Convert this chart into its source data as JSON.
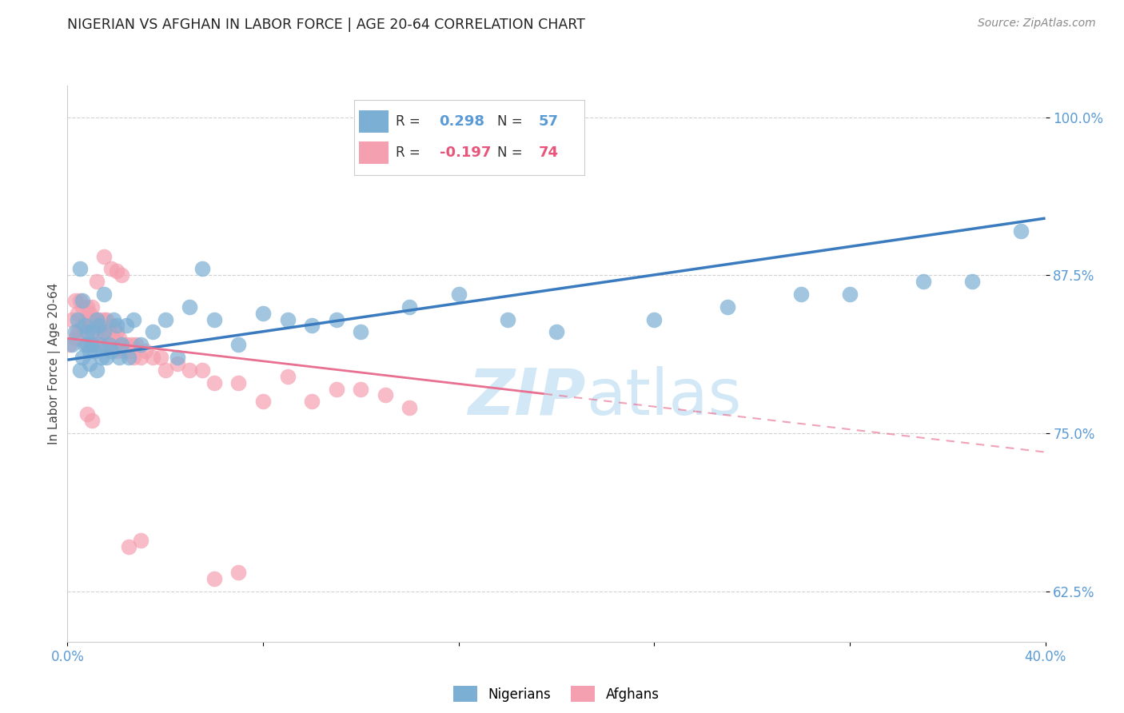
{
  "title": "NIGERIAN VS AFGHAN IN LABOR FORCE | AGE 20-64 CORRELATION CHART",
  "source": "Source: ZipAtlas.com",
  "ylabel": "In Labor Force | Age 20-64",
  "ytick_values": [
    0.625,
    0.75,
    0.875,
    1.0
  ],
  "ytick_labels": [
    "62.5%",
    "75.0%",
    "87.5%",
    "100.0%"
  ],
  "xlim": [
    0.0,
    0.4
  ],
  "ylim": [
    0.585,
    1.025
  ],
  "color_nigerian": "#7bafd4",
  "color_afghan": "#f4a0b0",
  "color_nigerian_line": "#3a7abf",
  "color_afghan_line": "#e87090",
  "watermark_zip": "ZIP",
  "watermark_atlas": "atlas",
  "nigerian_x": [
    0.002,
    0.003,
    0.004,
    0.005,
    0.005,
    0.006,
    0.006,
    0.007,
    0.007,
    0.008,
    0.008,
    0.009,
    0.009,
    0.01,
    0.01,
    0.011,
    0.012,
    0.012,
    0.013,
    0.013,
    0.014,
    0.015,
    0.015,
    0.016,
    0.017,
    0.018,
    0.019,
    0.02,
    0.021,
    0.022,
    0.024,
    0.025,
    0.027,
    0.03,
    0.035,
    0.04,
    0.045,
    0.05,
    0.055,
    0.06,
    0.07,
    0.08,
    0.09,
    0.1,
    0.11,
    0.12,
    0.14,
    0.16,
    0.18,
    0.2,
    0.24,
    0.27,
    0.3,
    0.32,
    0.35,
    0.37,
    0.39
  ],
  "nigerian_y": [
    0.82,
    0.83,
    0.84,
    0.88,
    0.8,
    0.855,
    0.81,
    0.82,
    0.835,
    0.83,
    0.82,
    0.815,
    0.805,
    0.82,
    0.83,
    0.815,
    0.84,
    0.8,
    0.82,
    0.835,
    0.81,
    0.86,
    0.83,
    0.81,
    0.82,
    0.815,
    0.84,
    0.835,
    0.81,
    0.82,
    0.835,
    0.81,
    0.84,
    0.82,
    0.83,
    0.84,
    0.81,
    0.85,
    0.88,
    0.84,
    0.82,
    0.845,
    0.84,
    0.835,
    0.84,
    0.83,
    0.85,
    0.86,
    0.84,
    0.83,
    0.84,
    0.85,
    0.86,
    0.86,
    0.87,
    0.87,
    0.91
  ],
  "afghan_x": [
    0.001,
    0.002,
    0.003,
    0.003,
    0.004,
    0.004,
    0.005,
    0.005,
    0.006,
    0.006,
    0.007,
    0.007,
    0.008,
    0.008,
    0.008,
    0.009,
    0.009,
    0.01,
    0.01,
    0.01,
    0.011,
    0.011,
    0.012,
    0.012,
    0.013,
    0.013,
    0.014,
    0.015,
    0.015,
    0.016,
    0.016,
    0.017,
    0.017,
    0.018,
    0.018,
    0.019,
    0.02,
    0.02,
    0.021,
    0.022,
    0.023,
    0.024,
    0.025,
    0.026,
    0.027,
    0.028,
    0.03,
    0.032,
    0.035,
    0.038,
    0.04,
    0.045,
    0.05,
    0.055,
    0.06,
    0.07,
    0.08,
    0.09,
    0.1,
    0.11,
    0.12,
    0.13,
    0.14,
    0.018,
    0.022,
    0.012,
    0.015,
    0.02,
    0.008,
    0.01,
    0.06,
    0.025,
    0.03,
    0.07
  ],
  "afghan_y": [
    0.82,
    0.84,
    0.855,
    0.825,
    0.845,
    0.83,
    0.855,
    0.83,
    0.85,
    0.835,
    0.84,
    0.83,
    0.84,
    0.85,
    0.82,
    0.835,
    0.845,
    0.84,
    0.82,
    0.85,
    0.835,
    0.82,
    0.84,
    0.83,
    0.84,
    0.825,
    0.835,
    0.84,
    0.82,
    0.83,
    0.84,
    0.82,
    0.83,
    0.835,
    0.82,
    0.825,
    0.83,
    0.815,
    0.825,
    0.82,
    0.815,
    0.82,
    0.815,
    0.82,
    0.81,
    0.82,
    0.81,
    0.815,
    0.81,
    0.81,
    0.8,
    0.805,
    0.8,
    0.8,
    0.79,
    0.79,
    0.775,
    0.795,
    0.775,
    0.785,
    0.785,
    0.78,
    0.77,
    0.88,
    0.875,
    0.87,
    0.89,
    0.878,
    0.765,
    0.76,
    0.635,
    0.66,
    0.665,
    0.64
  ]
}
